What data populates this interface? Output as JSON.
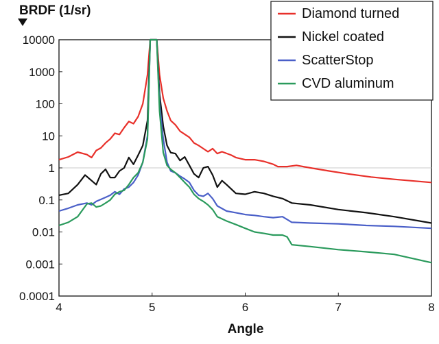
{
  "chart_data": {
    "type": "line",
    "ylabel": "BRDF (1/sr)",
    "xlabel": "Angle",
    "x_range": [
      4,
      8
    ],
    "y_range": [
      0.0001,
      10000
    ],
    "y_scale": "log",
    "x_ticks": [
      "4",
      "5",
      "6",
      "7",
      "8"
    ],
    "y_ticks": [
      "10000",
      "1000",
      "100",
      "10",
      "1",
      "0.1",
      "0.01",
      "0.001",
      "0.0001"
    ],
    "reference_line_y": 1,
    "legend_position": "top-right",
    "series": [
      {
        "name": "Diamond turned",
        "color": "#e8302a",
        "points": [
          [
            4.0,
            1.8
          ],
          [
            4.1,
            2.2
          ],
          [
            4.2,
            3.1
          ],
          [
            4.3,
            2.6
          ],
          [
            4.35,
            2.1
          ],
          [
            4.4,
            3.5
          ],
          [
            4.45,
            4.2
          ],
          [
            4.5,
            6
          ],
          [
            4.55,
            8
          ],
          [
            4.6,
            12
          ],
          [
            4.65,
            11
          ],
          [
            4.7,
            18
          ],
          [
            4.75,
            28
          ],
          [
            4.8,
            24
          ],
          [
            4.85,
            40
          ],
          [
            4.9,
            100
          ],
          [
            4.95,
            800
          ],
          [
            4.98,
            10000
          ],
          [
            5.05,
            10000
          ],
          [
            5.08,
            800
          ],
          [
            5.12,
            150
          ],
          [
            5.16,
            60
          ],
          [
            5.2,
            30
          ],
          [
            5.25,
            22
          ],
          [
            5.3,
            14
          ],
          [
            5.4,
            9
          ],
          [
            5.45,
            6
          ],
          [
            5.5,
            5
          ],
          [
            5.55,
            4
          ],
          [
            5.6,
            3.2
          ],
          [
            5.65,
            4
          ],
          [
            5.7,
            2.8
          ],
          [
            5.75,
            3.2
          ],
          [
            5.85,
            2.5
          ],
          [
            5.9,
            2.1
          ],
          [
            6.0,
            1.8
          ],
          [
            6.1,
            1.8
          ],
          [
            6.2,
            1.6
          ],
          [
            6.3,
            1.3
          ],
          [
            6.35,
            1.1
          ],
          [
            6.45,
            1.1
          ],
          [
            6.55,
            1.2
          ],
          [
            6.7,
            1.0
          ],
          [
            6.9,
            0.8
          ],
          [
            7.1,
            0.65
          ],
          [
            7.35,
            0.52
          ],
          [
            7.6,
            0.44
          ],
          [
            8.0,
            0.35
          ]
        ]
      },
      {
        "name": "Nickel coated",
        "color": "#111111",
        "points": [
          [
            4.0,
            0.14
          ],
          [
            4.1,
            0.16
          ],
          [
            4.2,
            0.3
          ],
          [
            4.28,
            0.6
          ],
          [
            4.35,
            0.4
          ],
          [
            4.4,
            0.3
          ],
          [
            4.45,
            0.65
          ],
          [
            4.5,
            0.9
          ],
          [
            4.55,
            0.5
          ],
          [
            4.6,
            0.5
          ],
          [
            4.65,
            0.8
          ],
          [
            4.7,
            1.0
          ],
          [
            4.75,
            2.1
          ],
          [
            4.8,
            1.3
          ],
          [
            4.85,
            2.5
          ],
          [
            4.9,
            5
          ],
          [
            4.95,
            30
          ],
          [
            4.98,
            10000
          ],
          [
            5.05,
            10000
          ],
          [
            5.08,
            200
          ],
          [
            5.12,
            20
          ],
          [
            5.16,
            5
          ],
          [
            5.2,
            3
          ],
          [
            5.25,
            2.8
          ],
          [
            5.3,
            1.7
          ],
          [
            5.35,
            2.2
          ],
          [
            5.4,
            1.2
          ],
          [
            5.45,
            0.65
          ],
          [
            5.5,
            0.5
          ],
          [
            5.55,
            1.0
          ],
          [
            5.6,
            1.1
          ],
          [
            5.65,
            0.6
          ],
          [
            5.7,
            0.25
          ],
          [
            5.75,
            0.4
          ],
          [
            5.8,
            0.3
          ],
          [
            5.9,
            0.16
          ],
          [
            6.0,
            0.15
          ],
          [
            6.1,
            0.18
          ],
          [
            6.2,
            0.16
          ],
          [
            6.3,
            0.13
          ],
          [
            6.4,
            0.11
          ],
          [
            6.5,
            0.08
          ],
          [
            6.7,
            0.07
          ],
          [
            7.0,
            0.05
          ],
          [
            7.3,
            0.04
          ],
          [
            7.6,
            0.03
          ],
          [
            8.0,
            0.019
          ]
        ]
      },
      {
        "name": "ScatterStop",
        "color": "#4a5fc8",
        "points": [
          [
            4.0,
            0.045
          ],
          [
            4.1,
            0.055
          ],
          [
            4.2,
            0.07
          ],
          [
            4.3,
            0.08
          ],
          [
            4.35,
            0.07
          ],
          [
            4.4,
            0.09
          ],
          [
            4.5,
            0.12
          ],
          [
            4.55,
            0.14
          ],
          [
            4.6,
            0.18
          ],
          [
            4.65,
            0.15
          ],
          [
            4.7,
            0.22
          ],
          [
            4.75,
            0.25
          ],
          [
            4.8,
            0.35
          ],
          [
            4.85,
            0.6
          ],
          [
            4.9,
            1.5
          ],
          [
            4.95,
            10
          ],
          [
            4.98,
            10000
          ],
          [
            5.05,
            10000
          ],
          [
            5.08,
            100
          ],
          [
            5.12,
            8
          ],
          [
            5.16,
            1.5
          ],
          [
            5.2,
            0.8
          ],
          [
            5.25,
            0.7
          ],
          [
            5.3,
            0.55
          ],
          [
            5.35,
            0.45
          ],
          [
            5.4,
            0.35
          ],
          [
            5.45,
            0.2
          ],
          [
            5.5,
            0.14
          ],
          [
            5.55,
            0.13
          ],
          [
            5.6,
            0.16
          ],
          [
            5.65,
            0.11
          ],
          [
            5.7,
            0.065
          ],
          [
            5.8,
            0.045
          ],
          [
            5.9,
            0.04
          ],
          [
            6.0,
            0.035
          ],
          [
            6.1,
            0.033
          ],
          [
            6.2,
            0.03
          ],
          [
            6.3,
            0.028
          ],
          [
            6.4,
            0.03
          ],
          [
            6.5,
            0.02
          ],
          [
            6.7,
            0.019
          ],
          [
            7.0,
            0.018
          ],
          [
            7.3,
            0.016
          ],
          [
            7.6,
            0.015
          ],
          [
            8.0,
            0.013
          ]
        ]
      },
      {
        "name": "CVD aluminum",
        "color": "#2a9a5c",
        "points": [
          [
            4.0,
            0.016
          ],
          [
            4.1,
            0.02
          ],
          [
            4.2,
            0.03
          ],
          [
            4.3,
            0.075
          ],
          [
            4.35,
            0.08
          ],
          [
            4.4,
            0.06
          ],
          [
            4.45,
            0.065
          ],
          [
            4.5,
            0.08
          ],
          [
            4.55,
            0.1
          ],
          [
            4.6,
            0.15
          ],
          [
            4.65,
            0.18
          ],
          [
            4.7,
            0.2
          ],
          [
            4.75,
            0.3
          ],
          [
            4.8,
            0.5
          ],
          [
            4.85,
            0.7
          ],
          [
            4.9,
            1.5
          ],
          [
            4.95,
            8
          ],
          [
            4.98,
            10000
          ],
          [
            5.05,
            10000
          ],
          [
            5.08,
            60
          ],
          [
            5.12,
            3
          ],
          [
            5.16,
            1.2
          ],
          [
            5.2,
            0.9
          ],
          [
            5.25,
            0.7
          ],
          [
            5.3,
            0.5
          ],
          [
            5.35,
            0.35
          ],
          [
            5.4,
            0.25
          ],
          [
            5.45,
            0.15
          ],
          [
            5.5,
            0.11
          ],
          [
            5.55,
            0.09
          ],
          [
            5.6,
            0.07
          ],
          [
            5.65,
            0.05
          ],
          [
            5.7,
            0.03
          ],
          [
            5.8,
            0.022
          ],
          [
            5.9,
            0.017
          ],
          [
            6.0,
            0.013
          ],
          [
            6.1,
            0.01
          ],
          [
            6.2,
            0.009
          ],
          [
            6.3,
            0.008
          ],
          [
            6.4,
            0.008
          ],
          [
            6.45,
            0.007
          ],
          [
            6.5,
            0.004
          ],
          [
            6.7,
            0.0035
          ],
          [
            7.0,
            0.0028
          ],
          [
            7.3,
            0.0024
          ],
          [
            7.6,
            0.002
          ],
          [
            8.0,
            0.0011
          ]
        ]
      }
    ]
  }
}
